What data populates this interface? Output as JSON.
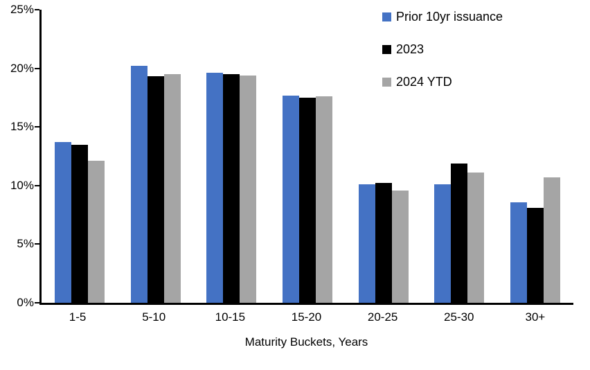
{
  "chart_data": {
    "type": "bar",
    "title": "",
    "xlabel": "Maturity Buckets, Years",
    "ylabel": "",
    "ylim": [
      0,
      25
    ],
    "grid": false,
    "legend_position": "top-right",
    "y_ticks": [
      {
        "value": 0,
        "label": "0%"
      },
      {
        "value": 5,
        "label": "5%"
      },
      {
        "value": 10,
        "label": "10%"
      },
      {
        "value": 15,
        "label": "15%"
      },
      {
        "value": 20,
        "label": "20%"
      },
      {
        "value": 25,
        "label": "25%"
      }
    ],
    "categories": [
      "1-5",
      "5-10",
      "10-15",
      "15-20",
      "20-25",
      "25-30",
      "30+"
    ],
    "series": [
      {
        "name": "Prior 10yr issuance",
        "color": "#4472C4",
        "values": [
          13.7,
          20.2,
          19.6,
          17.7,
          10.1,
          10.1,
          8.6
        ]
      },
      {
        "name": "2023",
        "color": "#000000",
        "values": [
          13.5,
          19.3,
          19.5,
          17.5,
          10.2,
          11.9,
          8.1
        ]
      },
      {
        "name": "2024 YTD",
        "color": "#A5A5A5",
        "values": [
          12.1,
          19.5,
          19.4,
          17.6,
          9.6,
          11.1,
          10.7
        ]
      }
    ],
    "colors": {
      "axis": "#000000",
      "text": "#000000",
      "background": "#FFFFFF"
    }
  }
}
